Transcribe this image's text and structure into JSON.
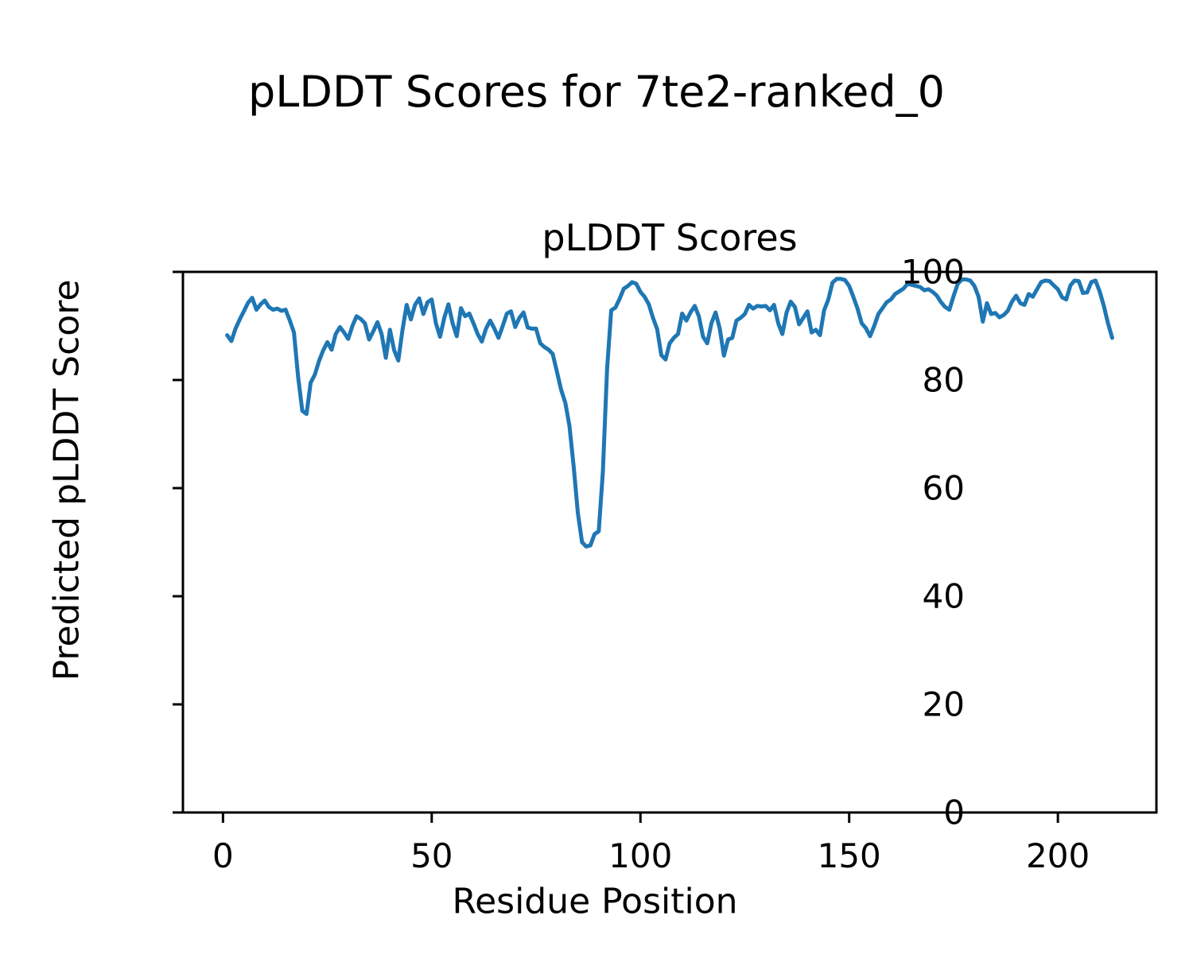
{
  "figure": {
    "background": "#ffffff",
    "suptitle": "pLDDT Scores for 7te2-ranked_0"
  },
  "chart_data": {
    "type": "line",
    "title": "pLDDT Scores",
    "xlabel": "Residue Position",
    "ylabel": "Predicted pLDDT Score",
    "xticks": [
      0,
      50,
      100,
      150,
      200
    ],
    "yticks": [
      0,
      20,
      40,
      60,
      80,
      100
    ],
    "xlim": [
      -9.6,
      223.6
    ],
    "ylim": [
      0,
      100
    ],
    "grid": false,
    "legend_position": "none",
    "line_color": "#1f77b4",
    "axis_color": "#000000",
    "series": [
      {
        "name": "pLDDT",
        "x_start": 1,
        "values": [
          88.3,
          87.2,
          89.5,
          91.2,
          92.7,
          94.3,
          95.2,
          93.0,
          94.0,
          94.7,
          93.5,
          93.0,
          93.2,
          92.8,
          93.0,
          91.0,
          88.8,
          80.5,
          74.3,
          73.7,
          79.5,
          81.0,
          83.5,
          85.5,
          87.0,
          85.6,
          88.5,
          89.8,
          88.8,
          87.6,
          90.0,
          91.8,
          91.3,
          90.5,
          87.5,
          89.0,
          90.7,
          88.5,
          84.1,
          89.3,
          85.5,
          83.6,
          89.3,
          93.9,
          91.2,
          93.9,
          95.1,
          92.2,
          94.4,
          94.9,
          90.5,
          88.0,
          91.5,
          94.0,
          90.5,
          88.1,
          93.3,
          91.8,
          92.3,
          90.5,
          88.5,
          87.1,
          89.5,
          91.0,
          89.5,
          87.8,
          90.0,
          92.3,
          92.7,
          89.8,
          91.5,
          92.5,
          89.7,
          89.5,
          89.5,
          86.8,
          86.1,
          85.6,
          84.8,
          81.5,
          78.2,
          75.8,
          71.5,
          64.0,
          55.5,
          50.0,
          49.2,
          49.4,
          51.5,
          52.0,
          63.0,
          82.0,
          92.9,
          93.4,
          95.0,
          96.9,
          97.4,
          98.1,
          97.8,
          96.3,
          95.4,
          94.0,
          91.5,
          89.4,
          84.6,
          83.8,
          86.8,
          87.8,
          88.5,
          92.3,
          91.0,
          92.5,
          93.7,
          91.8,
          88.0,
          86.8,
          90.5,
          92.5,
          89.5,
          84.5,
          87.5,
          87.8,
          91.0,
          91.5,
          92.2,
          93.9,
          93.2,
          93.7,
          93.6,
          93.7,
          92.9,
          93.9,
          90.5,
          88.5,
          92.5,
          94.5,
          93.5,
          90.3,
          91.5,
          92.7,
          88.8,
          89.3,
          88.3,
          92.9,
          94.9,
          98.0,
          98.7,
          98.7,
          98.5,
          97.4,
          95.4,
          93.2,
          90.5,
          89.6,
          88.1,
          90.0,
          92.2,
          93.3,
          94.4,
          94.9,
          95.9,
          96.4,
          96.9,
          97.8,
          97.6,
          97.4,
          97.2,
          96.6,
          96.8,
          96.3,
          95.6,
          94.4,
          93.5,
          93.0,
          95.5,
          97.8,
          98.6,
          98.6,
          98.4,
          97.4,
          95.4,
          90.8,
          94.2,
          92.2,
          92.4,
          91.6,
          92.0,
          92.8,
          94.5,
          95.6,
          94.2,
          93.9,
          95.9,
          95.4,
          96.8,
          98.1,
          98.4,
          98.3,
          97.5,
          96.8,
          95.3,
          94.9,
          97.5,
          98.4,
          98.3,
          96.1,
          96.2,
          98.1,
          98.4,
          96.4,
          93.7,
          90.5,
          87.8
        ]
      }
    ]
  }
}
